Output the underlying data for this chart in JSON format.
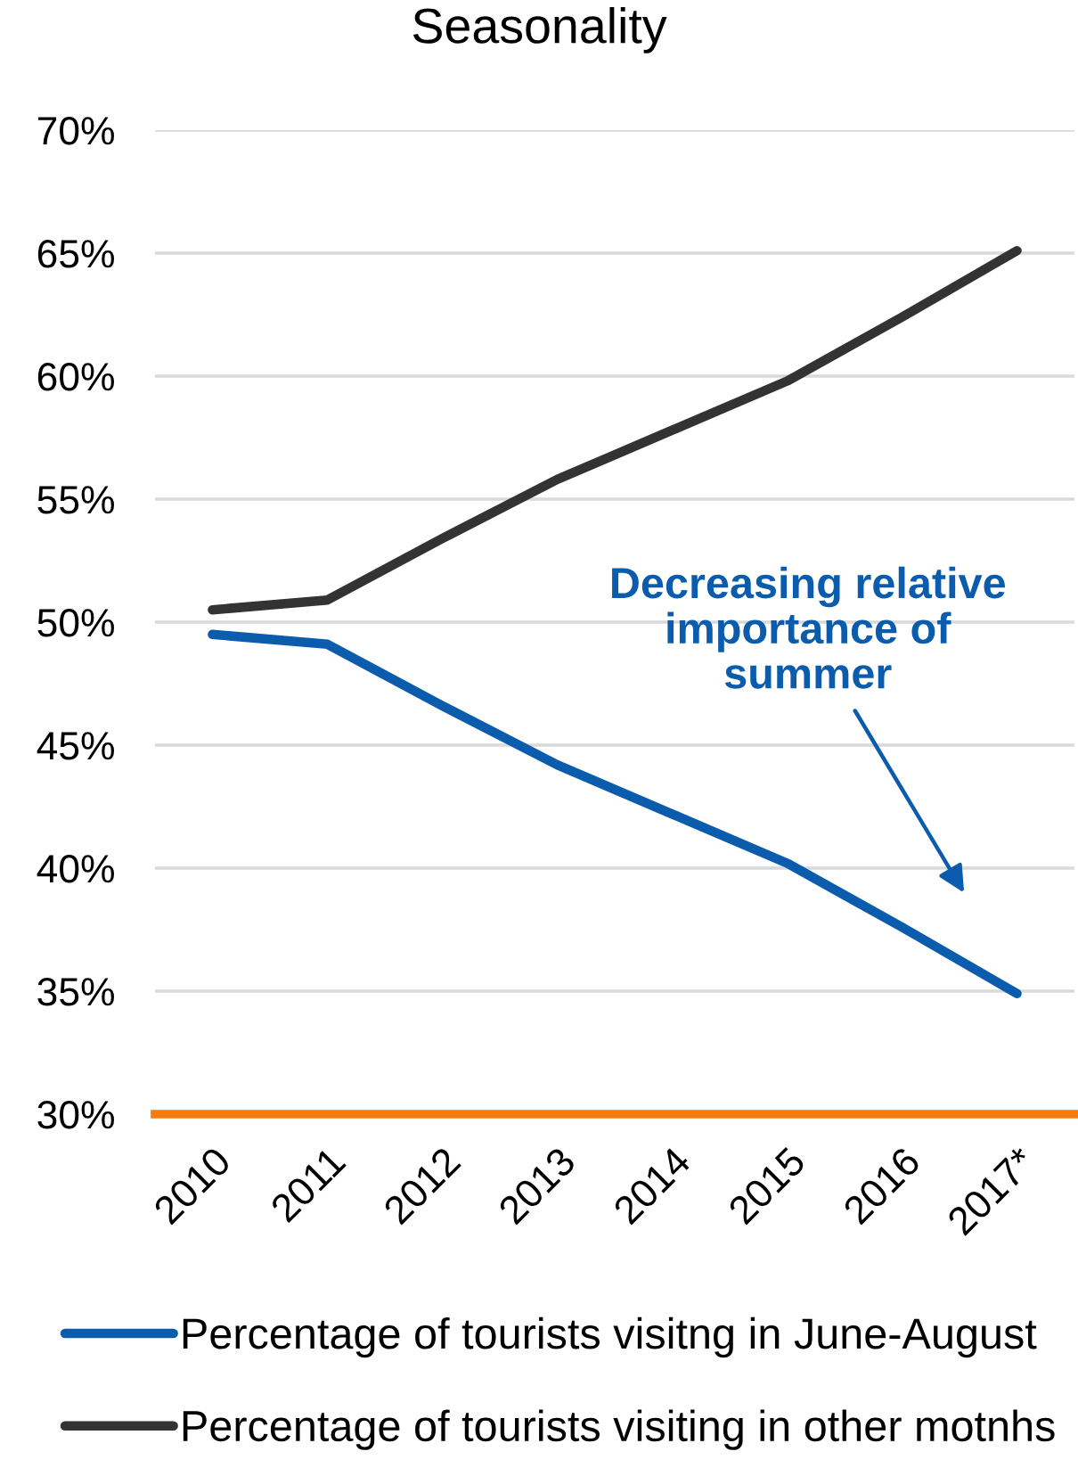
{
  "chart_data": {
    "type": "line",
    "title": "Seasonality",
    "categories": [
      "2010",
      "2011",
      "2012",
      "2013",
      "2014",
      "2015",
      "2016",
      "2017*"
    ],
    "series": [
      {
        "name": "Percentage of tourists visitng in June-August",
        "color": "#0b5cad",
        "values": [
          49.5,
          49.1,
          46.6,
          44.2,
          42.2,
          40.2,
          37.6,
          34.9
        ]
      },
      {
        "name": "Percentage of tourists visiting in other motnhs",
        "color": "#333333",
        "values": [
          50.5,
          50.9,
          53.4,
          55.8,
          57.8,
          59.8,
          62.4,
          65.1
        ]
      }
    ],
    "ylim": [
      30,
      70
    ],
    "yticks": [
      {
        "value": 30,
        "label": "30%"
      },
      {
        "value": 35,
        "label": "35%"
      },
      {
        "value": 40,
        "label": "40%"
      },
      {
        "value": 45,
        "label": "45%"
      },
      {
        "value": 50,
        "label": "50%"
      },
      {
        "value": 55,
        "label": "55%"
      },
      {
        "value": 60,
        "label": "60%"
      },
      {
        "value": 65,
        "label": "65%"
      },
      {
        "value": 70,
        "label": "70%"
      }
    ],
    "grid": "y",
    "legend": "bottom",
    "annotations": [
      "Decreasing relative\nimportance of\nsummer"
    ]
  }
}
